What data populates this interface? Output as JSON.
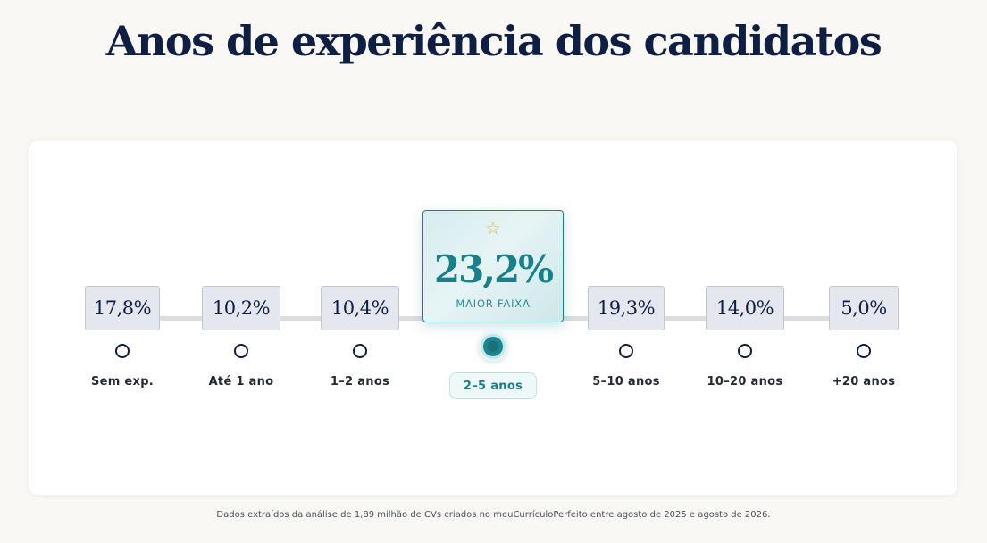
{
  "title": "Anos de experiência dos candidatos",
  "highlight_label": "MAIOR FAIXA",
  "highlight_icon": "star-outline-icon",
  "footnote": "Dados extraídos da análise de 1,89 milhão de CVs criados no meuCurrículoPerfeito entre agosto de 2025 e agosto de 2026.",
  "colors": {
    "title": "#0f1f44",
    "accent": "#17808a",
    "star": "#e8b64c",
    "box_bg": "#e5e7ee",
    "background": "#f9f8f4"
  },
  "chart_data": {
    "type": "bar",
    "title": "Anos de experiência dos candidatos",
    "unit": "%",
    "categories": [
      "Sem exp.",
      "Até 1 ano",
      "1–2 anos",
      "2–5 anos",
      "5–10 anos",
      "10–20 anos",
      "+20 anos"
    ],
    "values": [
      17.8,
      10.2,
      10.4,
      23.2,
      19.3,
      14.0,
      5.0
    ],
    "value_labels": [
      "17,8%",
      "10,2%",
      "10,4%",
      "23,2%",
      "19,3%",
      "14,0%",
      "5,0%"
    ],
    "highlighted_index": 3
  }
}
